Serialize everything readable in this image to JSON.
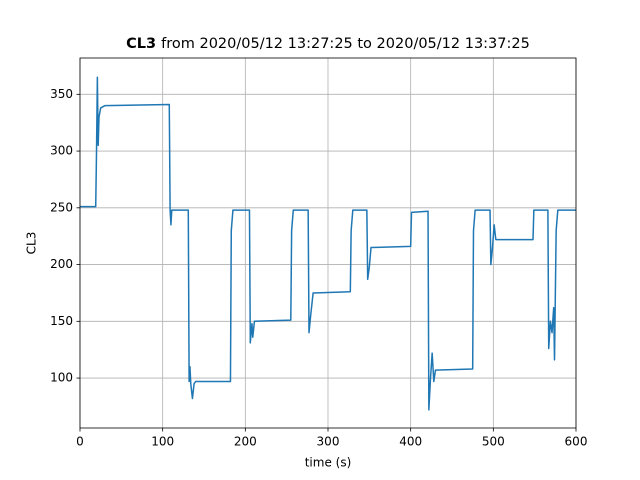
{
  "chart_data": {
    "type": "line",
    "title": {
      "bold": "CL3",
      "rest": "from 2020/05/12 13:27:25 to 2020/05/12 13:37:25"
    },
    "xlabel": "time (s)",
    "ylabel": "CL3",
    "xlim": [
      0,
      600
    ],
    "xticks": [
      0,
      100,
      200,
      300,
      400,
      500,
      600
    ],
    "ylim": [
      56,
      382
    ],
    "yticks": [
      100,
      150,
      200,
      250,
      300,
      350
    ],
    "grid": true,
    "series": [
      {
        "color": "#1f77b4",
        "x": [
          0,
          19,
          20,
          21,
          22,
          23,
          25,
          30,
          108,
          109,
          110,
          111,
          131,
          132,
          133,
          134,
          136,
          138,
          140,
          182,
          183,
          185,
          205,
          206,
          208,
          209,
          211,
          255,
          256,
          258,
          276,
          277,
          279,
          282,
          327,
          328,
          330,
          347,
          348,
          350,
          352,
          400,
          401,
          421,
          422,
          424,
          426,
          428,
          430,
          475,
          476,
          478,
          496,
          497,
          499,
          501,
          503,
          548,
          549,
          566,
          567,
          569,
          571,
          573,
          574,
          576,
          578,
          600
        ],
        "values": [
          251,
          251,
          300,
          365,
          305,
          330,
          338,
          340,
          341,
          248,
          235,
          248,
          248,
          97,
          110,
          95,
          82,
          95,
          97,
          97,
          230,
          248,
          248,
          131,
          148,
          136,
          150,
          151,
          230,
          248,
          248,
          140,
          155,
          175,
          176,
          230,
          248,
          248,
          187,
          198,
          215,
          216,
          246,
          247,
          72,
          100,
          122,
          97,
          107,
          108,
          230,
          248,
          248,
          200,
          215,
          235,
          222,
          222,
          248,
          248,
          126,
          150,
          140,
          162,
          116,
          230,
          248,
          248
        ]
      }
    ]
  }
}
